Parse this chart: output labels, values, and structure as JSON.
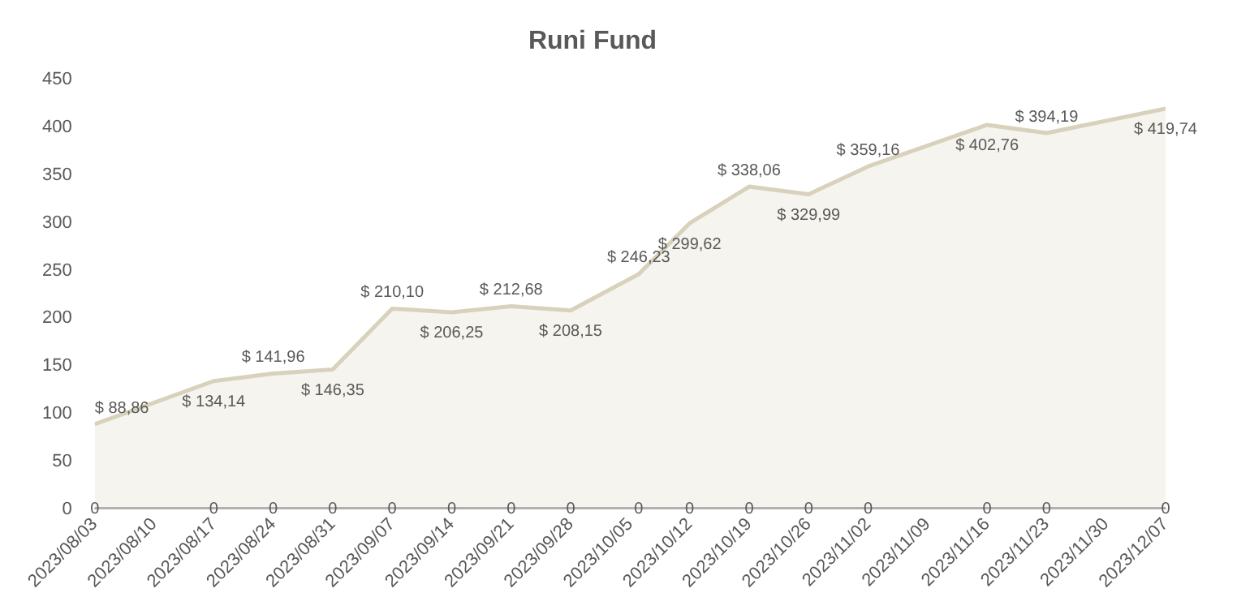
{
  "chart_data": {
    "type": "line",
    "title": "Runi Fund",
    "x": [
      "2023-08-03",
      "2023-08-17",
      "2023-08-24",
      "2023-08-31",
      "2023-09-07",
      "2023-09-14",
      "2023-09-21",
      "2023-09-28",
      "2023-10-06",
      "2023-10-12",
      "2023-10-19",
      "2023-10-26",
      "2023-11-02",
      "2023-11-16",
      "2023-11-23",
      "2023-12-07"
    ],
    "series": [
      {
        "type": "area",
        "color": "#d8d2bd",
        "values": [
          88.86,
          134.14,
          141.96,
          146.35,
          210.1,
          206.25,
          212.68,
          208.15,
          246.23,
          299.62,
          338.06,
          329.99,
          359.16,
          402.76,
          394.19,
          419.74
        ],
        "value_labels": [
          "$ 88,86",
          "$ 134,14",
          "$ 141,96",
          "$ 146,35",
          "$ 210,10",
          "$ 206,25",
          "$ 212,68",
          "$ 208,15",
          "$ 246,23",
          "$ 299,62",
          "$ 338,06",
          "$ 329,99",
          "$ 359,16",
          "$ 402,76",
          "$ 394,19",
          "$ 419,74"
        ]
      },
      {
        "color": "#a6a6a6",
        "values": [
          0,
          0,
          0,
          0,
          0,
          0,
          0,
          0,
          0,
          0,
          0,
          0,
          0,
          0,
          0,
          0
        ],
        "value_labels": [
          "0",
          "0",
          "0",
          "0",
          "0",
          "0",
          "0",
          "0",
          "0",
          "0",
          "0",
          "0",
          "0",
          "0",
          "0",
          "0"
        ]
      }
    ],
    "xlim": [
      "2023-08-03",
      "2023-12-07"
    ],
    "xticks": [
      {
        "value": "2023-08-03",
        "label": "2023/08/03"
      },
      {
        "value": "2023-08-10",
        "label": "2023/08/10"
      },
      {
        "value": "2023-08-17",
        "label": "2023/08/17"
      },
      {
        "value": "2023-08-24",
        "label": "2023/08/24"
      },
      {
        "value": "2023-08-31",
        "label": "2023/08/31"
      },
      {
        "value": "2023-09-07",
        "label": "2023/09/07"
      },
      {
        "value": "2023-09-14",
        "label": "2023/09/14"
      },
      {
        "value": "2023-09-21",
        "label": "2023/09/21"
      },
      {
        "value": "2023-09-28",
        "label": "2023/09/28"
      },
      {
        "value": "2023-10-05",
        "label": "2023/10/05"
      },
      {
        "value": "2023-10-12",
        "label": "2023/10/12"
      },
      {
        "value": "2023-10-19",
        "label": "2023/10/19"
      },
      {
        "value": "2023-10-26",
        "label": "2023/10/26"
      },
      {
        "value": "2023-11-02",
        "label": "2023/11/02"
      },
      {
        "value": "2023-11-09",
        "label": "2023/11/09"
      },
      {
        "value": "2023-11-16",
        "label": "2023/11/16"
      },
      {
        "value": "2023-11-23",
        "label": "2023/11/23"
      },
      {
        "value": "2023-11-30",
        "label": "2023/11/30"
      },
      {
        "value": "2023-12-07",
        "label": "2023/12/07"
      }
    ],
    "ylim": [
      0,
      450
    ],
    "yticks": [
      0,
      50,
      100,
      150,
      200,
      250,
      300,
      350,
      400,
      450
    ],
    "grid": false,
    "legend": false,
    "marker": "none",
    "line_style": "solid"
  }
}
